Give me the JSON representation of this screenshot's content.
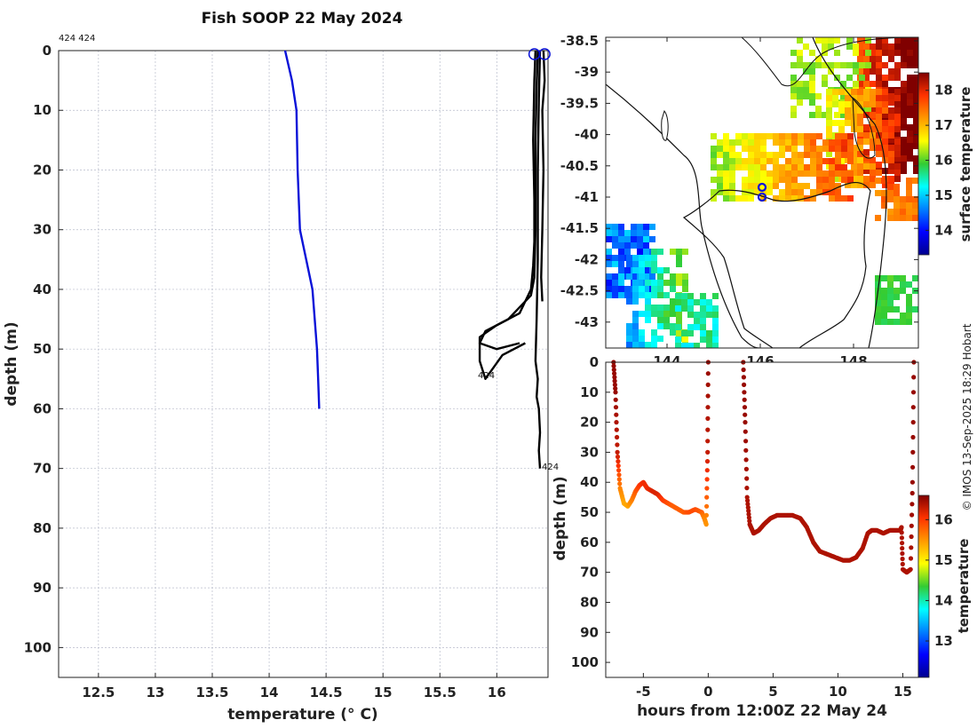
{
  "title": "Fish SOOP 22 May 2024",
  "credit": "© IMOS 13-Sep-2025 18:29 Hobart",
  "chart_data": [
    {
      "type": "line",
      "name": "depth-temperature-profiles",
      "xlabel": "temperature (° C)",
      "ylabel": "depth (m)",
      "xlim": [
        12.15,
        16.45
      ],
      "ylim": [
        105,
        0
      ],
      "xticks": [
        12.5,
        13,
        13.5,
        14,
        14.5,
        15,
        15.5,
        16
      ],
      "yticks": [
        0,
        10,
        20,
        30,
        40,
        50,
        60,
        70,
        80,
        90,
        100
      ],
      "grid": true,
      "top_labels": [
        "424 424"
      ],
      "annotations": [
        "424",
        "424"
      ],
      "series": [
        {
          "name": "blue",
          "color": "#0a12d8",
          "x": [
            14.14,
            14.2,
            14.24,
            14.25,
            14.26,
            14.27,
            14.38,
            14.42,
            14.43,
            14.44
          ],
          "y": [
            0,
            5,
            10,
            20,
            25,
            30,
            40,
            50,
            55,
            60
          ]
        },
        {
          "name": "black-1",
          "color": "#000000",
          "x": [
            16.34,
            16.33,
            16.32,
            16.33,
            16.33,
            16.32,
            16.31,
            16.3,
            16.2,
            16.0,
            15.85,
            15.85,
            15.9,
            16.05,
            16.25
          ],
          "y": [
            0,
            5,
            15,
            25,
            32,
            36,
            38,
            40,
            44,
            46,
            48,
            52,
            55,
            51,
            49
          ]
        },
        {
          "name": "black-2",
          "color": "#000000",
          "x": [
            16.36,
            16.35,
            16.34,
            16.34,
            16.33,
            16.3,
            16.1,
            15.9,
            15.85,
            16.0,
            16.2
          ],
          "y": [
            0,
            6,
            15,
            30,
            38,
            41,
            45,
            47,
            49,
            50,
            49
          ]
        },
        {
          "name": "black-3",
          "color": "#000000",
          "x": [
            16.38,
            16.37,
            16.36,
            16.36,
            16.35,
            16.34,
            16.36,
            16.35,
            16.37,
            16.38,
            16.37,
            16.38
          ],
          "y": [
            0,
            8,
            20,
            35,
            45,
            52,
            55,
            58,
            60,
            64,
            67,
            70
          ]
        },
        {
          "name": "black-4",
          "color": "#000000",
          "x": [
            16.41,
            16.42,
            16.4,
            16.41,
            16.4,
            16.39,
            16.4
          ],
          "y": [
            0,
            5,
            10,
            20,
            30,
            38,
            42
          ]
        }
      ],
      "surface_markers": [
        16.33,
        16.42
      ]
    },
    {
      "type": "heatmap",
      "name": "sea-surface-temperature-map",
      "xticks": [
        "144",
        "146",
        "148"
      ],
      "yticks": [
        "-38.5",
        "-39",
        "-39.5",
        "-40",
        "-40.5",
        "-41",
        "-41.5",
        "-42",
        "-42.5",
        "-43"
      ],
      "colorbar_label": "surface temperature",
      "colorbar_ticks": [
        "18",
        "17",
        "16",
        "15",
        "14"
      ],
      "colorbar_range": [
        13.3,
        18.5
      ],
      "markers": [
        [
          146.0,
          -40.85
        ],
        [
          146.0,
          -41.0
        ]
      ]
    },
    {
      "type": "scatter",
      "name": "depth-time-track",
      "xlabel": "hours from 12:00Z 22 May 24",
      "ylabel": "depth (m)",
      "xlim": [
        -7.9,
        16.2
      ],
      "ylim": [
        105,
        0
      ],
      "xticks": [
        "-5",
        "0",
        "5",
        "10",
        "15"
      ],
      "yticks": [
        "0",
        "10",
        "20",
        "30",
        "40",
        "50",
        "60",
        "70",
        "80",
        "90",
        "100"
      ],
      "colorbar_label": "temperature",
      "colorbar_ticks": [
        "16",
        "15",
        "14",
        "13"
      ],
      "colorbar_range": [
        12.1,
        16.6
      ],
      "segments": [
        {
          "x": [
            -7.3,
            -7.15,
            -7.0,
            -6.8,
            -6.5,
            -6.2,
            -5.9,
            -5.6,
            -5.3,
            -5.0,
            -4.7,
            -4.3,
            -3.9,
            -3.5,
            -3.1,
            -2.7,
            -2.3,
            -1.9,
            -1.5,
            -1.0,
            -0.5,
            -0.3,
            -0.15,
            -0.05,
            0.0
          ],
          "y": [
            0,
            10,
            30,
            42,
            47,
            48,
            46,
            43,
            41,
            40,
            42,
            43,
            44,
            46,
            47,
            48,
            49,
            50,
            50,
            49,
            50,
            52,
            54,
            30,
            0
          ],
          "t": [
            16.5,
            16.5,
            16.3,
            15.6,
            15.4,
            15.4,
            15.6,
            15.8,
            16.0,
            16.1,
            16.1,
            16.2,
            16.2,
            16.0,
            15.9,
            15.8,
            15.8,
            15.8,
            15.9,
            15.9,
            15.8,
            15.6,
            15.5,
            16.3,
            16.5
          ]
        },
        {
          "x": [
            2.7,
            2.85,
            3.0,
            3.2,
            3.5,
            3.9,
            4.3,
            4.8,
            5.3,
            5.9,
            6.5,
            7.1,
            7.6,
            8.1,
            8.6,
            9.2,
            9.8,
            10.4,
            10.9,
            11.4,
            11.9,
            12.3,
            12.6,
            13.0,
            13.5,
            14.0,
            14.4,
            14.8,
            14.9,
            15.0,
            15.3,
            15.6,
            15.75,
            15.85
          ],
          "y": [
            0,
            20,
            45,
            54,
            57,
            56,
            54,
            52,
            51,
            51,
            51,
            52,
            55,
            60,
            63,
            64,
            65,
            66,
            66,
            65,
            62,
            57,
            56,
            56,
            57,
            56,
            56,
            56,
            55,
            69,
            70,
            69,
            40,
            0
          ],
          "t": [
            16.5,
            16.5,
            16.4,
            16.4,
            16.4,
            16.4,
            16.4,
            16.4,
            16.4,
            16.4,
            16.4,
            16.4,
            16.4,
            16.4,
            16.4,
            16.4,
            16.4,
            16.4,
            16.4,
            16.4,
            16.4,
            16.4,
            16.4,
            16.4,
            16.4,
            16.4,
            16.4,
            16.4,
            16.4,
            16.4,
            16.4,
            16.4,
            16.5,
            16.5
          ]
        }
      ]
    }
  ]
}
